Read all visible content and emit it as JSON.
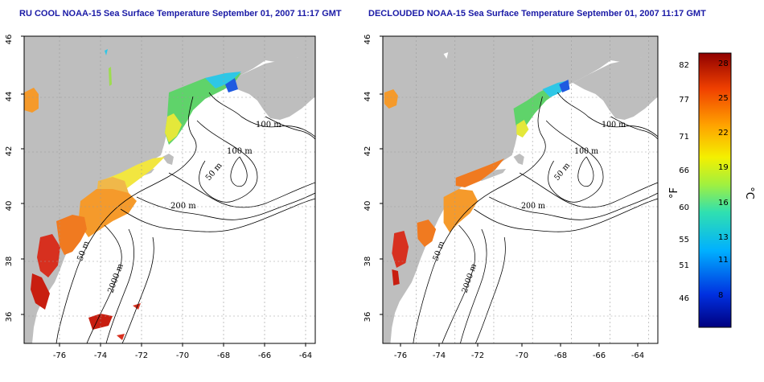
{
  "left_panel": {
    "title": "RU COOL NOAA-15 Sea Surface Temperature September 01, 2007 11:17 GMT"
  },
  "right_panel": {
    "title": "DECLOUDED NOAA-15 Sea Surface Temperature September 01, 2007 11:17 GMT"
  },
  "axes": {
    "lon_ticks": [
      "-76",
      "-74",
      "-72",
      "-70",
      "-68",
      "-66",
      "-64"
    ],
    "lat_ticks": [
      "46",
      "44",
      "42",
      "40",
      "38",
      "36"
    ]
  },
  "depth_labels": {
    "left": [
      "100 m",
      "100 m",
      "50 m",
      "200 m",
      "50 m",
      "2000 m"
    ],
    "right": [
      "100 m",
      "100 m",
      "50 m",
      "200 m",
      "50 m",
      "2000 m"
    ]
  },
  "colorbar": {
    "fahrenheit_ticks": [
      "82",
      "77",
      "71",
      "66",
      "60",
      "55",
      "51",
      "46"
    ],
    "celsius_ticks": [
      "28",
      "25",
      "22",
      "19",
      "16",
      "13",
      "11",
      "8"
    ],
    "fahrenheit_unit": "°F",
    "celsius_unit": "°C"
  },
  "colors": {
    "land": "#bebebe",
    "ocean": "#ffffff",
    "title": "#1a1aa6",
    "warm": "#d7301f",
    "orange": "#f59a2b",
    "yellow": "#f2e640",
    "green": "#5fd36a",
    "cyan": "#2ec7e6",
    "blue": "#1f5ae0"
  }
}
